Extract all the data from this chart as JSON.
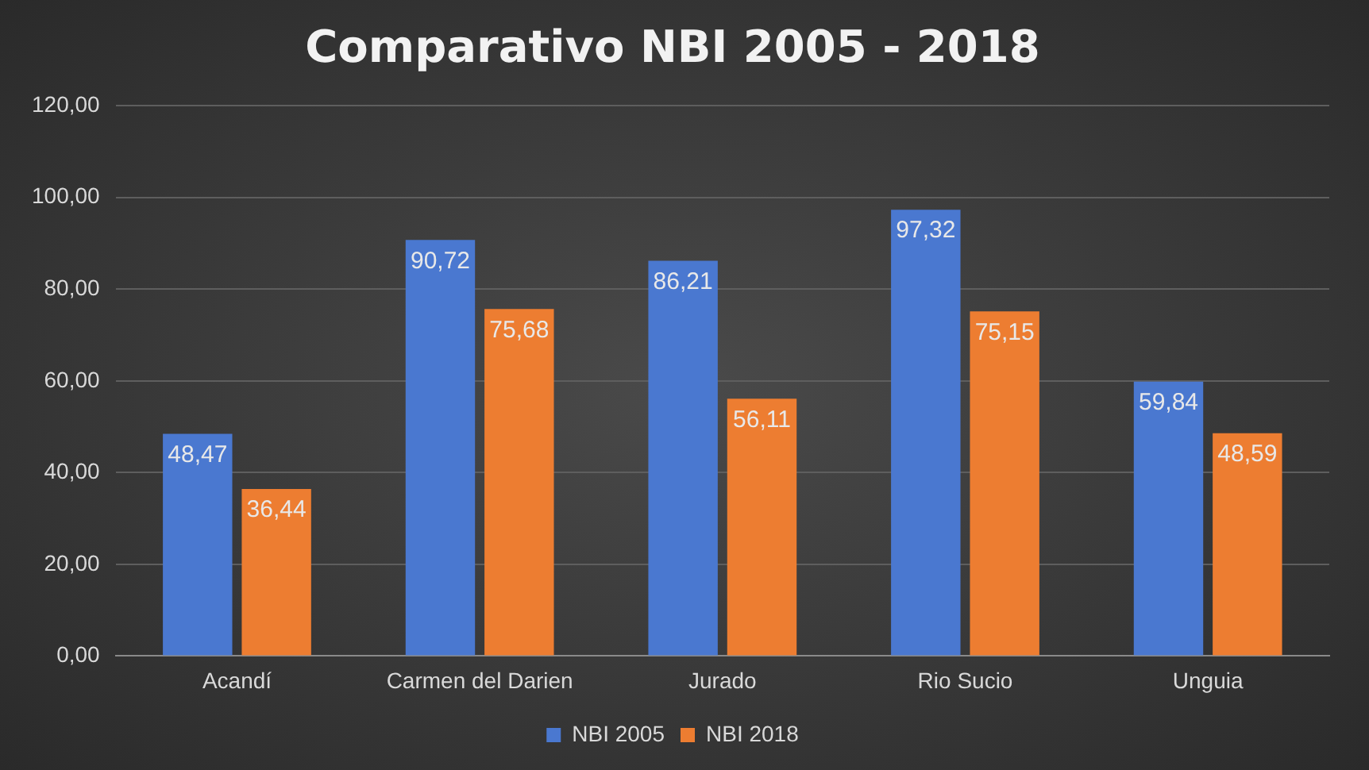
{
  "chart_data": {
    "type": "bar",
    "title": "Comparativo NBI 2005 - 2018",
    "categories": [
      "Acandí",
      "Carmen del Darien",
      "Jurado",
      "Rio Sucio",
      "Unguia"
    ],
    "series": [
      {
        "name": "NBI 2005",
        "color": "#4a78d0",
        "values": [
          48.47,
          90.72,
          86.21,
          97.32,
          59.84
        ],
        "value_labels": [
          "48,47",
          "90,72",
          "86,21",
          "97,32",
          "59,84"
        ]
      },
      {
        "name": "NBI 2018",
        "color": "#ed7d31",
        "values": [
          36.44,
          75.68,
          56.11,
          75.15,
          48.59
        ],
        "value_labels": [
          "36,44",
          "75,68",
          "56,11",
          "75,15",
          "48,59"
        ]
      }
    ],
    "ylim": [
      0,
      120
    ],
    "yticks": [
      {
        "value": 0,
        "label": "0,00"
      },
      {
        "value": 20,
        "label": "20,00"
      },
      {
        "value": 40,
        "label": "40,00"
      },
      {
        "value": 60,
        "label": "60,00"
      },
      {
        "value": 80,
        "label": "80,00"
      },
      {
        "value": 100,
        "label": "100,00"
      },
      {
        "value": 120,
        "label": "120,00"
      }
    ],
    "grid": "y",
    "legend": "bottom"
  }
}
